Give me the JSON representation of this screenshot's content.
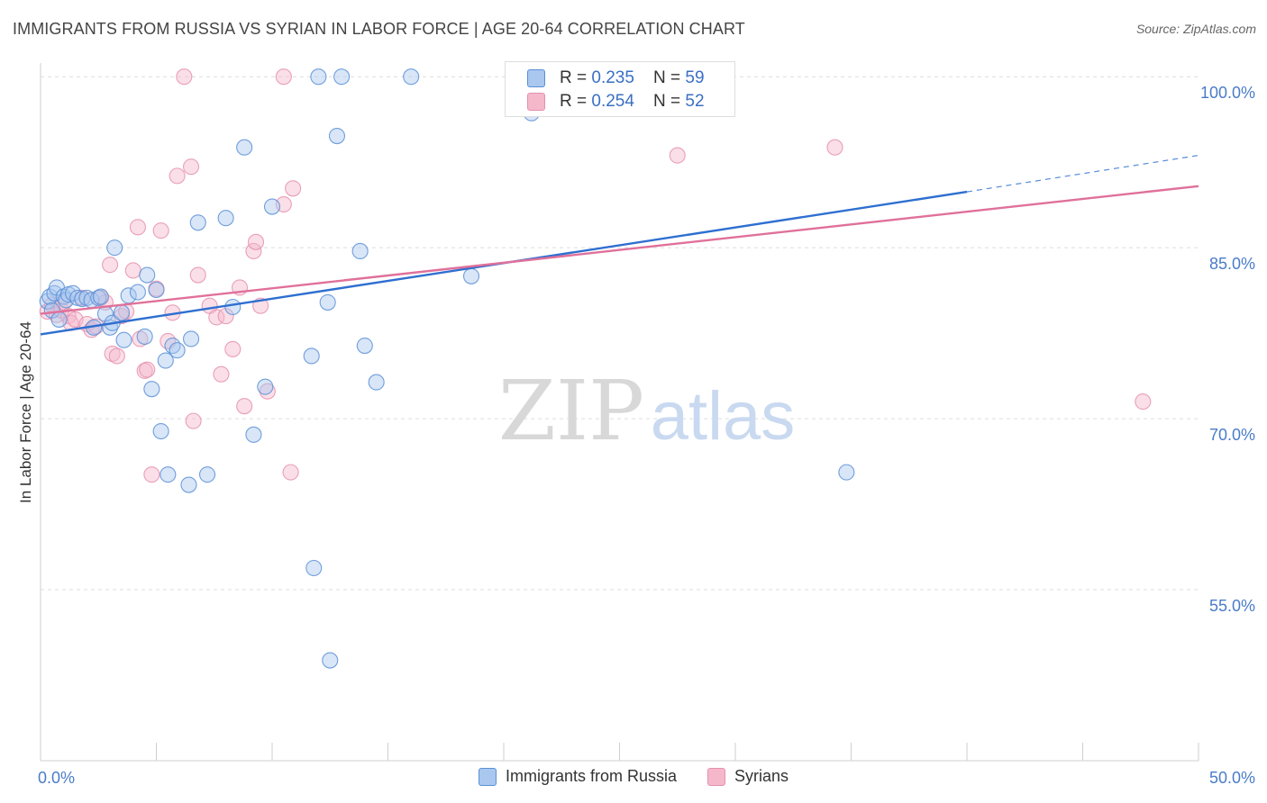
{
  "header": {
    "title": "IMMIGRANTS FROM RUSSIA VS SYRIAN IN LABOR FORCE | AGE 20-64 CORRELATION CHART",
    "source": "Source: ZipAtlas.com"
  },
  "watermark": {
    "zip": "ZIP",
    "atlas": "atlas"
  },
  "colors": {
    "russia_fill": "#a9c7ef",
    "russia_stroke": "#5b8fd6",
    "russia_line": "#2e6fd0",
    "syria_fill": "#f5b8cb",
    "syria_stroke": "#e590ae",
    "syria_line": "#e0709a",
    "tick_text": "#4a7cc9"
  },
  "stats": {
    "rows": [
      {
        "r_label": "R = ",
        "r_value": "0.235",
        "n_label": "N = ",
        "n_value": "59"
      },
      {
        "r_label": "R = ",
        "r_value": "0.254",
        "n_label": "N = ",
        "n_value": "52"
      }
    ]
  },
  "legend": {
    "items": [
      "Immigrants from Russia",
      "Syrians"
    ]
  },
  "chart_data": {
    "type": "scatter",
    "title": "IMMIGRANTS FROM RUSSIA VS SYRIAN IN LABOR FORCE | AGE 20-64 CORRELATION CHART",
    "xlabel": "",
    "ylabel": "In Labor Force | Age 20-64",
    "xlim": [
      0,
      50
    ],
    "ylim": [
      40,
      101.2
    ],
    "x_tick_labels": [
      "0.0%",
      "50.0%"
    ],
    "y_ticks": [
      55,
      70,
      85,
      100
    ],
    "y_tick_labels": [
      "55.0%",
      "70.0%",
      "85.0%",
      "100.0%"
    ],
    "grid": true,
    "legend_position": "bottom",
    "series": [
      {
        "name": "Immigrants from Russia",
        "r": 0.235,
        "n": 59,
        "trend": {
          "x": [
            0,
            40,
            50
          ],
          "y": [
            77.4,
            89.9,
            93.1
          ]
        },
        "points": [
          [
            0.3,
            80.3
          ],
          [
            0.4,
            80.7
          ],
          [
            0.5,
            79.5
          ],
          [
            0.6,
            81.0
          ],
          [
            0.7,
            81.5
          ],
          [
            0.8,
            78.7
          ],
          [
            1.0,
            80.7
          ],
          [
            1.1,
            80.4
          ],
          [
            1.2,
            80.9
          ],
          [
            1.4,
            81.0
          ],
          [
            1.6,
            80.6
          ],
          [
            1.8,
            80.5
          ],
          [
            2.0,
            80.6
          ],
          [
            2.2,
            80.4
          ],
          [
            2.3,
            78.0
          ],
          [
            2.5,
            80.6
          ],
          [
            2.6,
            80.7
          ],
          [
            2.8,
            79.2
          ],
          [
            3.0,
            78.0
          ],
          [
            3.1,
            78.4
          ],
          [
            3.2,
            85.0
          ],
          [
            3.5,
            79.3
          ],
          [
            3.6,
            76.9
          ],
          [
            3.8,
            80.8
          ],
          [
            4.2,
            81.1
          ],
          [
            4.5,
            77.2
          ],
          [
            4.6,
            82.6
          ],
          [
            4.8,
            72.6
          ],
          [
            5.0,
            81.3
          ],
          [
            5.2,
            68.9
          ],
          [
            5.4,
            75.1
          ],
          [
            5.5,
            65.1
          ],
          [
            5.7,
            76.4
          ],
          [
            5.9,
            76.0
          ],
          [
            6.4,
            64.2
          ],
          [
            6.5,
            77.0
          ],
          [
            6.8,
            87.2
          ],
          [
            7.2,
            65.1
          ],
          [
            8.0,
            87.6
          ],
          [
            8.3,
            79.8
          ],
          [
            8.8,
            93.8
          ],
          [
            9.2,
            68.6
          ],
          [
            9.7,
            72.8
          ],
          [
            10.0,
            88.6
          ],
          [
            11.7,
            75.5
          ],
          [
            11.8,
            56.9
          ],
          [
            12.0,
            100.0
          ],
          [
            12.4,
            80.2
          ],
          [
            12.5,
            48.8
          ],
          [
            12.8,
            94.8
          ],
          [
            13.0,
            100.0
          ],
          [
            13.8,
            84.7
          ],
          [
            14.0,
            76.4
          ],
          [
            14.5,
            73.2
          ],
          [
            16.0,
            100.0
          ],
          [
            18.6,
            82.5
          ],
          [
            21.2,
            96.8
          ],
          [
            27.5,
            100.0
          ],
          [
            34.8,
            65.3
          ]
        ]
      },
      {
        "name": "Syrians",
        "r": 0.254,
        "n": 52,
        "trend": {
          "x": [
            0,
            50
          ],
          "y": [
            79.2,
            90.4
          ]
        },
        "points": [
          [
            0.3,
            79.4
          ],
          [
            0.5,
            80.0
          ],
          [
            0.7,
            79.1
          ],
          [
            0.9,
            79.5
          ],
          [
            1.0,
            80.2
          ],
          [
            1.2,
            79.0
          ],
          [
            1.3,
            78.4
          ],
          [
            1.5,
            78.7
          ],
          [
            1.8,
            80.6
          ],
          [
            2.0,
            78.3
          ],
          [
            2.2,
            77.8
          ],
          [
            2.4,
            78.1
          ],
          [
            2.6,
            80.6
          ],
          [
            2.8,
            80.2
          ],
          [
            3.0,
            83.5
          ],
          [
            3.1,
            75.7
          ],
          [
            3.3,
            75.5
          ],
          [
            3.5,
            79.0
          ],
          [
            3.7,
            79.4
          ],
          [
            4.0,
            83.0
          ],
          [
            4.2,
            86.8
          ],
          [
            4.3,
            77.0
          ],
          [
            4.5,
            74.2
          ],
          [
            4.6,
            74.3
          ],
          [
            4.8,
            65.1
          ],
          [
            5.0,
            81.4
          ],
          [
            5.2,
            86.5
          ],
          [
            5.5,
            76.8
          ],
          [
            5.7,
            79.3
          ],
          [
            5.9,
            91.3
          ],
          [
            6.2,
            100.0
          ],
          [
            6.5,
            92.1
          ],
          [
            6.6,
            69.8
          ],
          [
            6.8,
            82.6
          ],
          [
            7.3,
            79.9
          ],
          [
            7.6,
            78.9
          ],
          [
            7.8,
            73.9
          ],
          [
            8.0,
            79.0
          ],
          [
            8.3,
            76.1
          ],
          [
            8.6,
            81.5
          ],
          [
            8.8,
            71.1
          ],
          [
            9.2,
            84.7
          ],
          [
            9.3,
            85.5
          ],
          [
            9.5,
            79.9
          ],
          [
            9.8,
            72.4
          ],
          [
            10.5,
            88.8
          ],
          [
            10.9,
            90.2
          ],
          [
            10.8,
            65.3
          ],
          [
            10.5,
            100.0
          ],
          [
            27.5,
            93.1
          ],
          [
            34.3,
            93.8
          ],
          [
            47.6,
            71.5
          ]
        ]
      }
    ]
  }
}
